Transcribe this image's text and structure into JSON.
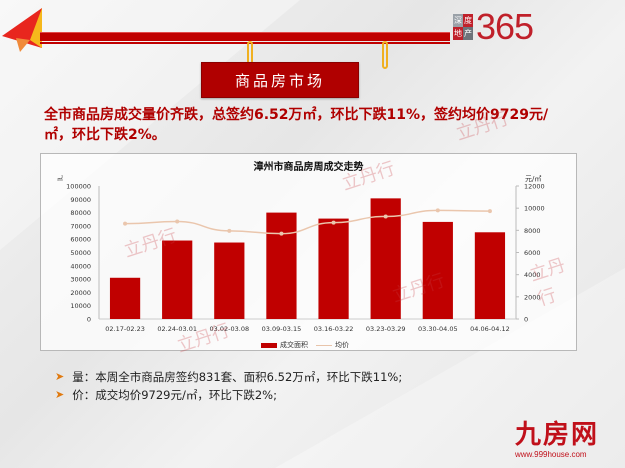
{
  "header": {
    "logo_cells": [
      "深",
      "度",
      "地",
      "产"
    ],
    "logo_number": "365",
    "banner_title": "商品房市场"
  },
  "headline": "全市商品房成交量价齐跌，总签约6.52万㎡，环比下跌11%，签约均价9729元/㎡，环比下跌2%。",
  "chart": {
    "title": "漳州市商品房周成交走势",
    "unit_left": "㎡",
    "unit_right": "元/㎡",
    "legend_bar": "成交面积",
    "legend_line": "均价",
    "left_ticks": [
      "100000",
      "90000",
      "80000",
      "70000",
      "60000",
      "50000",
      "40000",
      "30000",
      "20000",
      "10000",
      "0"
    ],
    "right_ticks": [
      "12000",
      "10000",
      "8000",
      "6000",
      "4000",
      "2000",
      "0"
    ]
  },
  "chart_data": {
    "type": "bar",
    "title": "漳州市商品房周成交走势",
    "categories": [
      "02.17-02.23",
      "02.24-03.01",
      "03.02-03.08",
      "03.09-03.15",
      "03.16-03.22",
      "03.23-03.29",
      "03.30-04.05",
      "04.06-04.12"
    ],
    "series": [
      {
        "name": "成交面积",
        "type": "bar",
        "axis": "left",
        "color": "#c00000",
        "values": [
          31000,
          59000,
          57500,
          80000,
          75500,
          90700,
          73000,
          65200
        ]
      },
      {
        "name": "均价",
        "type": "line",
        "axis": "right",
        "color": "#eac6ad",
        "values": [
          8600,
          8800,
          7950,
          7700,
          8700,
          9250,
          9800,
          9729
        ]
      }
    ],
    "xlabel": "",
    "ylabel": "㎡",
    "ylabel_right": "元/㎡",
    "ylim": [
      0,
      100000
    ],
    "ylim_right": [
      0,
      12000
    ],
    "grid": false,
    "legend_position": "bottom"
  },
  "bullets": [
    {
      "label": "量：",
      "text": "本周全市商品房签约831套、面积6.52万㎡，环比下跌11%;"
    },
    {
      "label": "价：",
      "text": "成交均价9729元/㎡，环比下跌2%;"
    }
  ],
  "brand": {
    "name": "九房网",
    "url": "www.999house.com"
  },
  "watermark": "立丹行"
}
